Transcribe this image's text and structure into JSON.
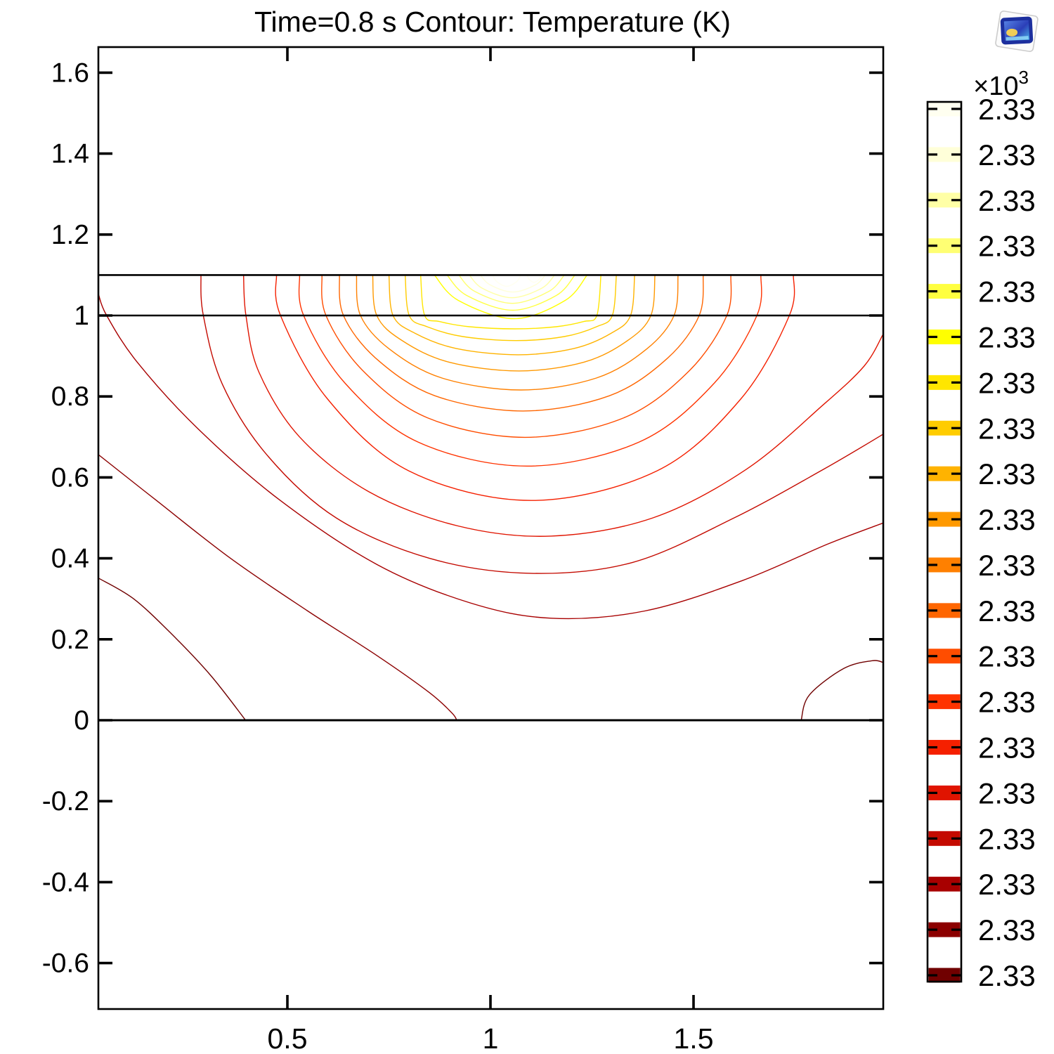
{
  "title": "Time=0.8 s   Contour: Temperature (K)",
  "axes": {
    "x_ticks": [
      {
        "label": "0.5",
        "value": 0.5
      },
      {
        "label": "1",
        "value": 1
      },
      {
        "label": "1.5",
        "value": 1.5
      }
    ],
    "y_ticks": [
      {
        "label": "1.6",
        "value": 1.6
      },
      {
        "label": "1.4",
        "value": 1.4
      },
      {
        "label": "1.2",
        "value": 1.2
      },
      {
        "label": "1",
        "value": 1.0
      },
      {
        "label": "0.8",
        "value": 0.8
      },
      {
        "label": "0.6",
        "value": 0.6
      },
      {
        "label": "0.4",
        "value": 0.4
      },
      {
        "label": "0.2",
        "value": 0.2
      },
      {
        "label": "0",
        "value": 0.0
      },
      {
        "label": "-0.2",
        "value": -0.2
      },
      {
        "label": "-0.4",
        "value": -0.4
      },
      {
        "label": "-0.6",
        "value": -0.6
      }
    ],
    "x_range": [
      0.035,
      1.966
    ],
    "y_range": [
      -0.713,
      1.663
    ]
  },
  "colorbar": {
    "exponent_base": "×10",
    "exponent_power": "3",
    "labels": [
      "2.33",
      "2.33",
      "2.33",
      "2.33",
      "2.33",
      "2.33",
      "2.33",
      "2.33",
      "2.33",
      "2.33",
      "2.33",
      "2.33",
      "2.33",
      "2.33",
      "2.33",
      "2.33",
      "2.33",
      "2.33",
      "2.33",
      "2.33"
    ]
  },
  "chart_data": {
    "type": "contour",
    "title": "Time=0.8 s   Contour: Temperature (K)",
    "quantity": "Temperature (K)",
    "time": "0.8 s",
    "unit_scale": "×10^3",
    "legend_position": "right",
    "x_range": [
      0.035,
      1.966
    ],
    "y_range": [
      -0.713,
      1.663
    ],
    "boundaries_v": [
      1.1,
      1.0,
      0.0
    ],
    "hot_boundary_highlights_u": [
      [
        0.96,
        1.05
      ],
      [
        1.08,
        1.17
      ],
      [
        1.2,
        1.3
      ]
    ],
    "levels": [
      {
        "i": 1,
        "label": "2.33",
        "color": "#700000",
        "components": [
          {
            "type": "path",
            "pts": [
              [
                0.035,
                0.351
              ],
              [
                0.12,
                0.301
              ],
              [
                0.21,
                0.218
              ],
              [
                0.31,
                0.112
              ],
              [
                0.397,
                0.0
              ]
            ]
          },
          {
            "type": "path",
            "pts": [
              [
                1.765,
                0.0
              ],
              [
                1.785,
                0.062
              ],
              [
                1.87,
                0.128
              ],
              [
                1.94,
                0.147
              ],
              [
                1.966,
                0.143
              ]
            ]
          }
        ]
      },
      {
        "i": 2,
        "label": "2.33",
        "color": "#8C0000",
        "components": [
          {
            "type": "path",
            "pts": [
              [
                0.035,
                0.656
              ],
              [
                0.175,
                0.545
              ],
              [
                0.36,
                0.4
              ],
              [
                0.55,
                0.27
              ],
              [
                0.72,
                0.16
              ],
              [
                0.85,
                0.068
              ],
              [
                0.905,
                0.018
              ],
              [
                0.917,
                0.0
              ]
            ]
          }
        ]
      },
      {
        "i": 3,
        "label": "2.33",
        "color": "#A80000",
        "components": [
          {
            "type": "path",
            "pts": [
              [
                0.035,
                1.052
              ],
              [
                0.055,
                1.0
              ],
              [
                0.13,
                0.885
              ],
              [
                0.28,
                0.72
              ],
              [
                0.48,
                0.545
              ],
              [
                0.72,
                0.385
              ],
              [
                0.95,
                0.29
              ],
              [
                1.15,
                0.252
              ],
              [
                1.38,
                0.27
              ],
              [
                1.62,
                0.345
              ],
              [
                1.83,
                0.435
              ],
              [
                1.966,
                0.487
              ]
            ]
          }
        ]
      },
      {
        "i": 4,
        "label": "2.33",
        "color": "#C40A00",
        "components": [
          {
            "type": "path",
            "pts": [
              [
                0.287,
                1.1
              ],
              [
                0.293,
                1.0
              ],
              [
                0.34,
                0.83
              ],
              [
                0.45,
                0.655
              ],
              [
                0.62,
                0.5
              ],
              [
                0.85,
                0.4
              ],
              [
                1.1,
                0.363
              ],
              [
                1.35,
                0.39
              ],
              [
                1.6,
                0.5
              ],
              [
                1.82,
                0.62
              ],
              [
                1.966,
                0.706
              ]
            ]
          }
        ]
      },
      {
        "i": 5,
        "label": "2.33",
        "color": "#E01400",
        "components": [
          {
            "type": "path",
            "pts": [
              [
                0.392,
                1.1
              ],
              [
                0.398,
                1.0
              ],
              [
                0.43,
                0.86
              ],
              [
                0.53,
                0.7
              ],
              [
                0.7,
                0.565
              ],
              [
                0.92,
                0.48
              ],
              [
                1.15,
                0.455
              ],
              [
                1.4,
                0.5
              ],
              [
                1.63,
                0.62
              ],
              [
                1.82,
                0.78
              ],
              [
                1.92,
                0.875
              ],
              [
                1.966,
                0.952
              ]
            ]
          }
        ]
      },
      {
        "i": 6,
        "label": "2.33",
        "color": "#F52000",
        "components": [
          {
            "type": "u",
            "uL": 0.473,
            "uR": 1.746,
            "uc": 1.1,
            "vm": 0.543
          }
        ]
      },
      {
        "i": 7,
        "label": "2.33",
        "color": "#FF3300",
        "components": [
          {
            "type": "u",
            "uL": 0.53,
            "uR": 1.666,
            "uc": 1.09,
            "vm": 0.628
          }
        ]
      },
      {
        "i": 8,
        "label": "2.33",
        "color": "#FF4D00",
        "components": [
          {
            "type": "u",
            "uL": 0.585,
            "uR": 1.592,
            "uc": 1.085,
            "vm": 0.699
          }
        ]
      },
      {
        "i": 9,
        "label": "2.33",
        "color": "#FF6600",
        "components": [
          {
            "type": "u",
            "uL": 0.628,
            "uR": 1.524,
            "uc": 1.08,
            "vm": 0.764
          }
        ]
      },
      {
        "i": 10,
        "label": "2.33",
        "color": "#FF8000",
        "components": [
          {
            "type": "u",
            "uL": 0.67,
            "uR": 1.462,
            "uc": 1.075,
            "vm": 0.816
          }
        ]
      },
      {
        "i": 11,
        "label": "2.33",
        "color": "#FF9900",
        "components": [
          {
            "type": "u",
            "uL": 0.71,
            "uR": 1.405,
            "uc": 1.07,
            "vm": 0.863
          }
        ]
      },
      {
        "i": 12,
        "label": "2.33",
        "color": "#FFB300",
        "components": [
          {
            "type": "u",
            "uL": 0.75,
            "uR": 1.355,
            "uc": 1.068,
            "vm": 0.903
          }
        ]
      },
      {
        "i": 13,
        "label": "2.33",
        "color": "#FFCC00",
        "components": [
          {
            "type": "u",
            "uL": 0.79,
            "uR": 1.31,
            "uc": 1.063,
            "vm": 0.938
          }
        ]
      },
      {
        "i": 14,
        "label": "2.33",
        "color": "#FFE600",
        "components": [
          {
            "type": "u",
            "uL": 0.828,
            "uR": 1.272,
            "uc": 1.06,
            "vm": 0.967
          }
        ]
      },
      {
        "i": 15,
        "label": "2.33",
        "color": "#FFFF00",
        "components": [
          {
            "type": "u",
            "uL": 0.862,
            "uR": 1.238,
            "uc": 1.058,
            "vm": 0.992
          }
        ]
      },
      {
        "i": 16,
        "label": "2.33",
        "color": "#FFFF40",
        "components": [
          {
            "type": "u",
            "uL": 0.893,
            "uR": 1.208,
            "uc": 1.055,
            "vm": 1.013
          }
        ]
      },
      {
        "i": 17,
        "label": "2.33",
        "color": "#FFFF73",
        "components": [
          {
            "type": "u",
            "uL": 0.922,
            "uR": 1.182,
            "uc": 1.054,
            "vm": 1.03
          }
        ]
      },
      {
        "i": 18,
        "label": "2.33",
        "color": "#FFFFA6",
        "components": [
          {
            "type": "u",
            "uL": 0.948,
            "uR": 1.158,
            "uc": 1.053,
            "vm": 1.044
          }
        ]
      },
      {
        "i": 19,
        "label": "2.33",
        "color": "#FFFFD9",
        "components": [
          {
            "type": "u",
            "uL": 0.975,
            "uR": 1.135,
            "uc": 1.055,
            "vm": 1.058
          }
        ]
      },
      {
        "i": 20,
        "label": "2.33",
        "color": "#FFFFF0",
        "components": [
          {
            "type": "u",
            "uL": 1.005,
            "uR": 1.075,
            "uc": 1.04,
            "vm": 1.072
          },
          {
            "type": "u",
            "uL": 1.09,
            "uR": 1.125,
            "uc": 1.107,
            "vm": 1.082
          }
        ]
      }
    ]
  }
}
